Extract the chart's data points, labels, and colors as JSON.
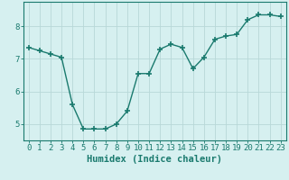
{
  "x": [
    0,
    1,
    2,
    3,
    4,
    5,
    6,
    7,
    8,
    9,
    10,
    11,
    12,
    13,
    14,
    15,
    16,
    17,
    18,
    19,
    20,
    21,
    22,
    23
  ],
  "y": [
    7.35,
    7.25,
    7.15,
    7.05,
    5.6,
    4.85,
    4.85,
    4.85,
    5.0,
    5.4,
    6.55,
    6.55,
    7.3,
    7.45,
    7.35,
    6.7,
    7.05,
    7.6,
    7.7,
    7.75,
    8.2,
    8.35,
    8.35,
    8.3
  ],
  "line_color": "#1a7a6e",
  "marker": "+",
  "marker_size": 4,
  "marker_lw": 1.2,
  "bg_color": "#d6f0f0",
  "grid_color": "#b8d8d8",
  "xlabel": "Humidex (Indice chaleur)",
  "ylim": [
    4.5,
    8.75
  ],
  "xlim": [
    -0.5,
    23.5
  ],
  "yticks": [
    5,
    6,
    7,
    8
  ],
  "xticks": [
    0,
    1,
    2,
    3,
    4,
    5,
    6,
    7,
    8,
    9,
    10,
    11,
    12,
    13,
    14,
    15,
    16,
    17,
    18,
    19,
    20,
    21,
    22,
    23
  ],
  "tick_label_fontsize": 6.5,
  "xlabel_fontsize": 7.5,
  "axis_color": "#1a7a6e",
  "linewidth": 1.0
}
